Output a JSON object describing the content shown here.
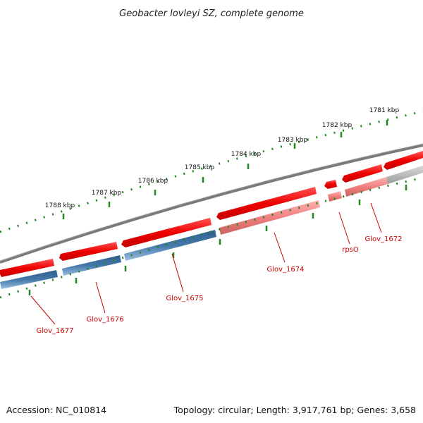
{
  "title": "Geobacter lovleyi SZ, complete genome",
  "footer": {
    "accession": "Accession: NC_010814",
    "summary": "Topology: circular; Length: 3,917,761 bp; Genes: 3,658"
  },
  "scale_labels": [
    "1781 kbp",
    "1782 kbp",
    "1783 kbp",
    "1784 kbp",
    "1785 kbp",
    "1786 kbp",
    "1787 kbp",
    "1788 kbp"
  ],
  "gene_labels": [
    "Glov_1677",
    "Glov_1676",
    "Glov_1675",
    "Glov_1674",
    "rpsO",
    "Glov_1672"
  ],
  "colors": {
    "forward_gene": "#ee1111",
    "forward_gene_light": "#f08080",
    "reverse_gene": "#4477aa",
    "unknown_gene": "#bbbbbb",
    "backbone": "#777777",
    "ticks": "#228822",
    "label_red": "#cc0000"
  }
}
